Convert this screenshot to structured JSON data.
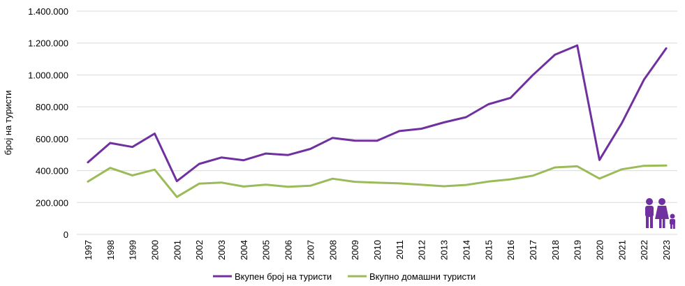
{
  "chart_data": {
    "type": "line",
    "title": "",
    "xlabel": "",
    "ylabel": "број на туристи",
    "ylim": [
      0,
      1400000
    ],
    "y_ticks": [
      0,
      200000,
      400000,
      600000,
      800000,
      1000000,
      1200000,
      1400000
    ],
    "y_tick_labels": [
      "0",
      "200.000",
      "400.000",
      "600.000",
      "800.000",
      "1.000.000",
      "1.200.000",
      "1.400.000"
    ],
    "grid": true,
    "legend_position": "bottom",
    "categories": [
      "1997",
      "1998",
      "1999",
      "2000",
      "2001",
      "2002",
      "2003",
      "2004",
      "2005",
      "2006",
      "2007",
      "2008",
      "2009",
      "2010",
      "2011",
      "2012",
      "2013",
      "2014",
      "2015",
      "2016",
      "2017",
      "2018",
      "2019",
      "2020",
      "2021",
      "2022",
      "2023"
    ],
    "series": [
      {
        "name": "Вкупен број на туристи",
        "color": "#7030a0",
        "values": [
          452000,
          573000,
          548000,
          632000,
          334000,
          442000,
          482000,
          465000,
          507000,
          498000,
          536000,
          605000,
          588000,
          587000,
          648000,
          663000,
          702000,
          735000,
          816000,
          856000,
          999000,
          1127000,
          1185000,
          467000,
          697000,
          970000,
          1167000
        ]
      },
      {
        "name": "Вкупно домашни туристи",
        "color": "#9bbb59",
        "values": [
          331000,
          417000,
          370000,
          406000,
          235000,
          318000,
          325000,
          300000,
          312000,
          299000,
          305000,
          349000,
          330000,
          324000,
          320000,
          311000,
          302000,
          310000,
          331000,
          345000,
          368000,
          420000,
          427000,
          350000,
          408000,
          430000,
          432000
        ]
      }
    ]
  },
  "icons": {
    "family": "family-icon"
  }
}
